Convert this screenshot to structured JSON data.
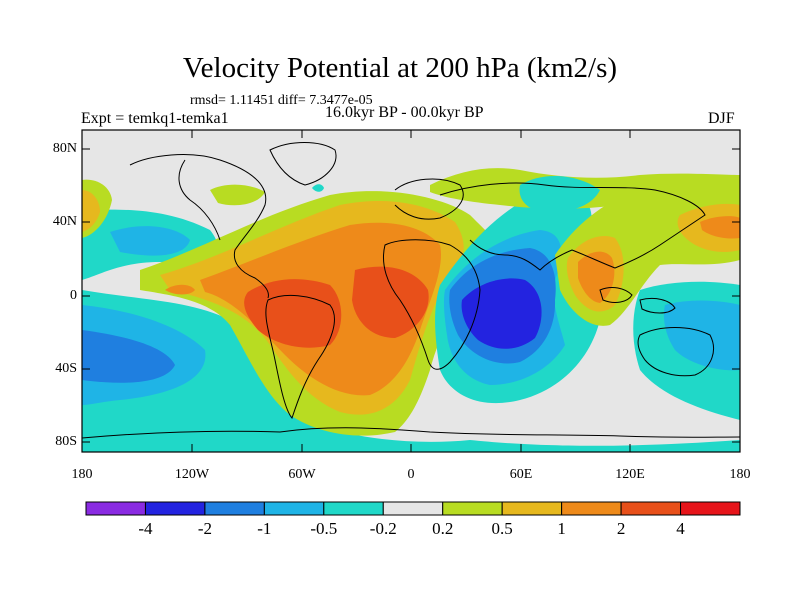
{
  "title": "Velocity Potential at 200 hPa (km2/s)",
  "stats": "rmsd= 1.11451 diff= 7.3477e-05",
  "experiment": "Expt = temkq1-temka1",
  "period": "16.0kyr BP - 00.0kyr BP",
  "season": "DJF",
  "lat_labels": [
    "80N",
    "40N",
    "0",
    "40S",
    "80S"
  ],
  "lon_labels": [
    "180",
    "120W",
    "60W",
    "0",
    "60E",
    "120E",
    "180"
  ],
  "colorbar": {
    "colors": [
      "#8a2be2",
      "#2323e0",
      "#1f7fe0",
      "#1fb4e6",
      "#20d8c8",
      "#e6e6e6",
      "#b8dc22",
      "#e6b81e",
      "#ee8a1a",
      "#e8501a",
      "#e6141a"
    ],
    "labels": [
      "-4",
      "-2",
      "-1",
      "-0.5",
      "-0.2",
      "0.2",
      "0.5",
      "1",
      "2",
      "4"
    ]
  },
  "icons": {
    "map": "world-map-coastlines"
  }
}
